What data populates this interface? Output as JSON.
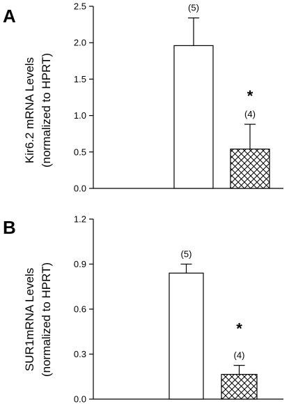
{
  "chart_data": [
    {
      "type": "bar",
      "panel_label": "A",
      "ylabel_line1": "Kir6.2 mRNA Levels",
      "ylabel_line2": "(normalized to HPRT)",
      "ylim": [
        0,
        2.5
      ],
      "yticks": [
        "0.0",
        "0.5",
        "1.0",
        "1.5",
        "2.0",
        "2.5"
      ],
      "bars": [
        {
          "value": 1.96,
          "error": 0.38,
          "n_label": "(5)",
          "pattern": "open",
          "marker": ""
        },
        {
          "value": 0.54,
          "error": 0.34,
          "n_label": "(4)",
          "pattern": "crosshatch",
          "marker": "*"
        }
      ]
    },
    {
      "type": "bar",
      "panel_label": "B",
      "ylabel_line1": "SUR1mRNA Levels",
      "ylabel_line2": "(normalized to HPRT)",
      "ylim": [
        0,
        1.2
      ],
      "yticks": [
        "0.0",
        "0.3",
        "0.6",
        "0.9",
        "1.2"
      ],
      "bars": [
        {
          "value": 0.84,
          "error": 0.06,
          "n_label": "(5)",
          "pattern": "open",
          "marker": ""
        },
        {
          "value": 0.165,
          "error": 0.06,
          "n_label": "(4)",
          "pattern": "crosshatch",
          "marker": "*"
        }
      ]
    }
  ]
}
